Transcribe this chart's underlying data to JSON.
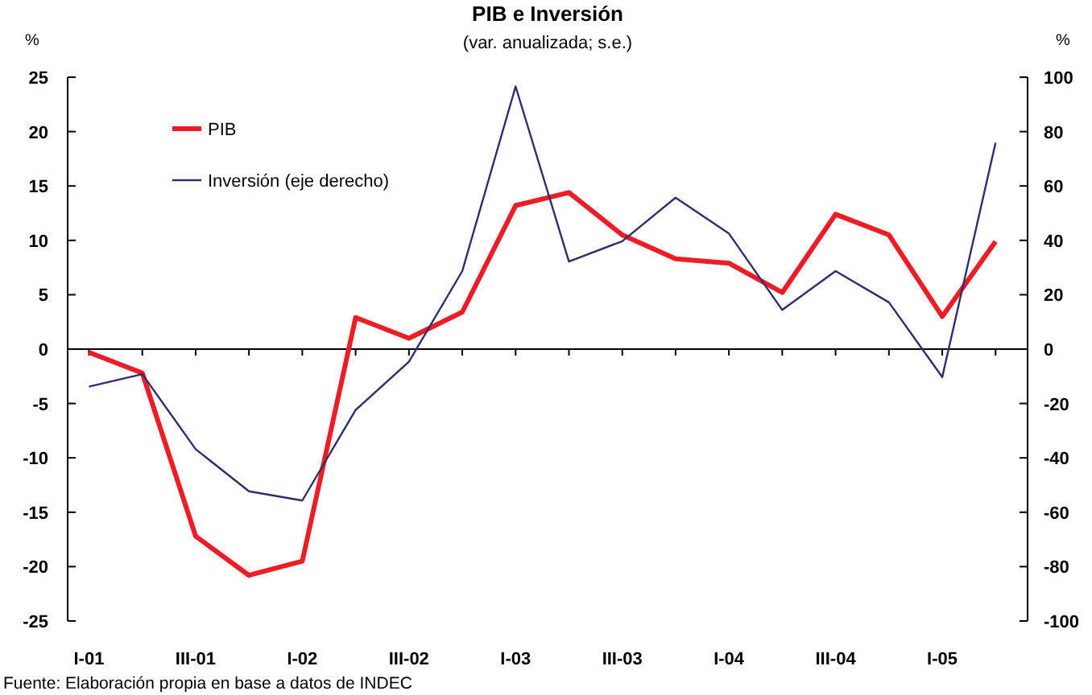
{
  "chart_data": {
    "type": "line",
    "title": "PIB e Inversión",
    "subtitle": "(var. anualizada; s.e.)",
    "ylabel": "%",
    "y2label": "%",
    "categories": [
      "I-01",
      null,
      "III-01",
      null,
      "I-02",
      null,
      "III-02",
      null,
      "I-03",
      null,
      "III-03",
      null,
      "I-04",
      null,
      "III-04",
      null,
      "I-05",
      null
    ],
    "series": [
      {
        "name": "PIB",
        "color": "#ee1c25",
        "values": [
          -0.3,
          -2.2,
          -17.2,
          -20.8,
          -19.5,
          2.9,
          1.0,
          3.4,
          13.2,
          14.4,
          10.5,
          8.3,
          7.9,
          5.2,
          12.4,
          10.5,
          3.0,
          9.9
        ]
      },
      {
        "name": "Inversión (eje derecho)",
        "color": "#2e2e6e",
        "axis": "y2",
        "values": [
          -13.8,
          -9.2,
          -36.8,
          -52.3,
          -55.7,
          -22.4,
          -4.6,
          28.7,
          96.6,
          32.2,
          39.7,
          55.7,
          42.5,
          14.4,
          28.7,
          17.2,
          -10.3,
          75.9
        ]
      }
    ],
    "ylim": [
      -25,
      25
    ],
    "yticks": [
      -25,
      -20,
      -15,
      -10,
      -5,
      0,
      5,
      10,
      15,
      20,
      25
    ],
    "y2lim": [
      -100,
      100
    ],
    "y2ticks": [
      -100,
      -80,
      -60,
      -40,
      -20,
      0,
      20,
      40,
      60,
      80,
      100
    ],
    "legend": "top left",
    "annotations": [
      "Fuente: Elaboración propia en base a datos de INDEC"
    ]
  }
}
